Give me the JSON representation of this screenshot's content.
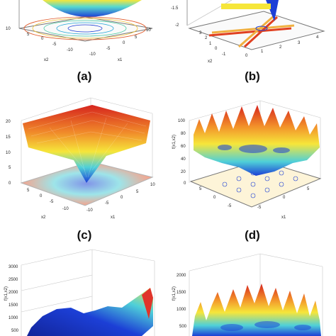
{
  "captions": {
    "a": "(a)",
    "b": "(b)",
    "c": "(c)",
    "d": "(d)"
  },
  "panel_a": {
    "zticks": [
      "10"
    ],
    "x1_ticks": [
      "10",
      "5",
      "0",
      "-5",
      "-10"
    ],
    "x2_ticks": [
      "5",
      "0",
      "-5",
      "-10"
    ],
    "x1_label": "x1",
    "x2_label": "x2"
  },
  "panel_b": {
    "zticks": [
      "-1.5",
      "-2"
    ],
    "x1_ticks": [
      "4",
      "3",
      "2",
      "1",
      "0"
    ],
    "x2_ticks": [
      "3",
      "2",
      "1",
      "0",
      "-1"
    ],
    "x2_label": "x2"
  },
  "panel_c": {
    "zticks": [
      "20",
      "15",
      "10",
      "5",
      "0"
    ],
    "x1_ticks": [
      "10",
      "5",
      "0",
      "-5",
      "-10"
    ],
    "x2_ticks": [
      "5",
      "0",
      "-5",
      "-10"
    ],
    "x1_label": "x1",
    "x2_label": "x2"
  },
  "panel_d": {
    "zticks": [
      "100",
      "80",
      "60",
      "40",
      "20",
      "0"
    ],
    "x1_ticks": [
      "5",
      "0",
      "-5"
    ],
    "x2_ticks": [
      "5",
      "0",
      "-5"
    ],
    "x1_label": "x1",
    "zlabel": "f(x1,x2)"
  },
  "panel_e": {
    "zticks": [
      "3000",
      "2500",
      "2000",
      "1500",
      "1000",
      "500"
    ],
    "zlabel": "f(x1,x2)"
  },
  "panel_f": {
    "zticks": [
      "2000",
      "1500",
      "1000",
      "500"
    ],
    "zlabel": "f(x1,x2)"
  },
  "colors": {
    "surface_low": "#1c3fd6",
    "surface_mid": "#f2e73a",
    "surface_high": "#d6241e"
  }
}
